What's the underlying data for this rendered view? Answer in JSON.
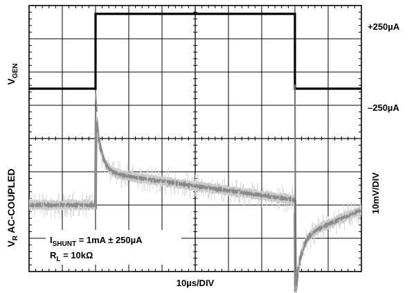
{
  "chart_data": {
    "type": "line",
    "title": "",
    "time_axis": {
      "label": "10µs/DIV",
      "units": "µs",
      "divisions": 10,
      "us_per_div": 10,
      "range": [
        0,
        100
      ]
    },
    "top_trace": {
      "name": "V_GEN",
      "label_main": "V",
      "label_sub": "GEN",
      "levels": {
        "high_label": "+250µA",
        "low_label": "–250µA"
      },
      "units": "µA",
      "points": [
        {
          "t": 0,
          "i": -250
        },
        {
          "t": 20,
          "i": -250
        },
        {
          "t": 20,
          "i": 250
        },
        {
          "t": 80,
          "i": 250
        },
        {
          "t": 80,
          "i": -250
        },
        {
          "t": 100,
          "i": -250
        }
      ]
    },
    "bottom_trace": {
      "name": "V_R AC-COUPLED",
      "label_main": "V",
      "label_sub": "R",
      "label_rest": " AC-COUPLED",
      "scale_label": "10mV/DIV",
      "units": "mV",
      "mv_per_div": 10,
      "baseline_mV": 0,
      "segments": [
        {
          "t_start": 0,
          "t_end": 20,
          "start_mV": 0,
          "end_mV": 0
        },
        {
          "t_start": 20,
          "t_end": 80,
          "start_mV": 10,
          "end_mV": 1.5,
          "peak_mV": 28
        },
        {
          "t_start": 80,
          "t_end": 100,
          "start_mV": -10,
          "end_mV": -1.5,
          "peak_mV": -28
        }
      ]
    },
    "annotations": [
      {
        "main": "I",
        "sub": "SHUNT",
        "rest": " = 1mA ± 250µA"
      },
      {
        "main": "R",
        "sub": "L",
        "rest": " = 10kΩ"
      }
    ],
    "grid": true
  }
}
